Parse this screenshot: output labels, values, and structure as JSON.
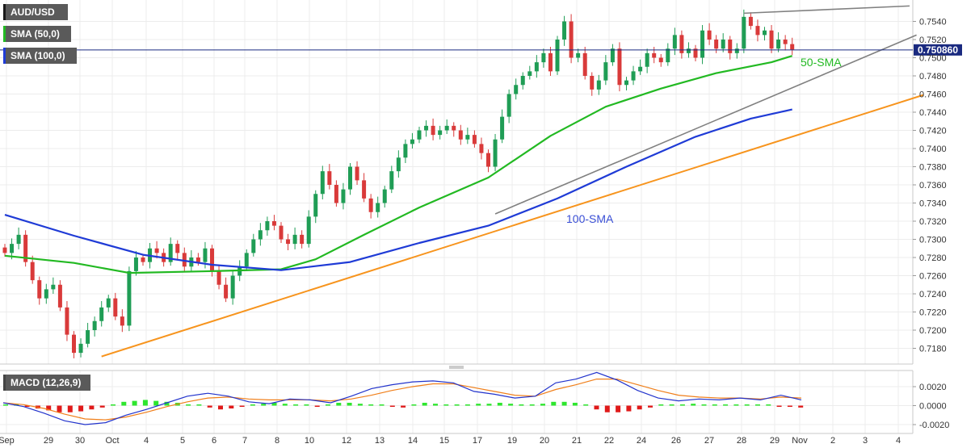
{
  "chart_data": [
    {
      "type": "candlestick",
      "title": "AUD/USD",
      "legend": [
        {
          "label": "AUD/USD",
          "color": "#1a1a1a"
        },
        {
          "label": "SMA (50,0)",
          "color": "#22b922"
        },
        {
          "label": "SMA (100,0)",
          "color": "#1f3bd6"
        }
      ],
      "legend_position": "top-left",
      "grid": true,
      "x_tick_labels": [
        "Sep",
        "29",
        "30",
        "Oct",
        "4",
        "5",
        "6",
        "7",
        "8",
        "10",
        "12",
        "13",
        "14",
        "15",
        "17",
        "19",
        "20",
        "21",
        "22",
        "24",
        "26",
        "27",
        "28",
        "29",
        "Nov",
        "2",
        "3",
        "4"
      ],
      "y_ticks": [
        0.718,
        0.72,
        0.722,
        0.724,
        0.726,
        0.728,
        0.73,
        0.732,
        0.734,
        0.736,
        0.738,
        0.74,
        0.742,
        0.744,
        0.746,
        0.748,
        0.75,
        0.752,
        0.754
      ],
      "y_tick_labels": [
        "0.7180",
        "0.7200",
        "0.7220",
        "0.7240",
        "0.7260",
        "0.7280",
        "0.7300",
        "0.7320",
        "0.7340",
        "0.7360",
        "0.7380",
        "0.7400",
        "0.7420",
        "0.7440",
        "0.7460",
        "0.7480",
        "0.7500",
        "0.7520",
        "0.7540"
      ],
      "ylim": [
        0.7166,
        0.7557
      ],
      "current_price": 0.75086,
      "current_price_label": "0.750860",
      "candle_closes": [
        0.7285,
        0.7295,
        0.7305,
        0.7275,
        0.7255,
        0.7235,
        0.7245,
        0.725,
        0.7225,
        0.7195,
        0.7175,
        0.7185,
        0.72,
        0.721,
        0.7225,
        0.7235,
        0.7215,
        0.7205,
        0.7265,
        0.728,
        0.7275,
        0.729,
        0.7285,
        0.7275,
        0.7295,
        0.7285,
        0.727,
        0.728,
        0.7275,
        0.729,
        0.7265,
        0.725,
        0.7235,
        0.726,
        0.727,
        0.7285,
        0.73,
        0.731,
        0.732,
        0.7315,
        0.73,
        0.7295,
        0.7305,
        0.7295,
        0.7325,
        0.735,
        0.7375,
        0.736,
        0.734,
        0.7355,
        0.738,
        0.7365,
        0.7345,
        0.733,
        0.734,
        0.7355,
        0.7375,
        0.739,
        0.7405,
        0.741,
        0.742,
        0.7425,
        0.7415,
        0.742,
        0.7425,
        0.742,
        0.741,
        0.7415,
        0.7405,
        0.7395,
        0.738,
        0.741,
        0.7435,
        0.746,
        0.747,
        0.748,
        0.7485,
        0.7495,
        0.7505,
        0.7485,
        0.752,
        0.754,
        0.75,
        0.7505,
        0.748,
        0.7465,
        0.7475,
        0.7495,
        0.751,
        0.747,
        0.7475,
        0.7485,
        0.749,
        0.7505,
        0.75,
        0.7495,
        0.751,
        0.7525,
        0.7505,
        0.751,
        0.75,
        0.753,
        0.752,
        0.751,
        0.752,
        0.7505,
        0.751,
        0.7545,
        0.7535,
        0.7525,
        0.753,
        0.751,
        0.752,
        0.7515,
        0.7509
      ],
      "series": [
        {
          "name": "50-SMA",
          "x_index": [
            0,
            10,
            18,
            30,
            40,
            45,
            52,
            60,
            70,
            79,
            87,
            95,
            103,
            111,
            114
          ],
          "values": [
            0.7282,
            0.7274,
            0.7263,
            0.7265,
            0.7267,
            0.7278,
            0.7305,
            0.7335,
            0.7368,
            0.7414,
            0.7446,
            0.7466,
            0.7483,
            0.7495,
            0.7502
          ]
        },
        {
          "name": "100-SMA",
          "x_index": [
            0,
            10,
            20,
            30,
            40,
            50,
            60,
            70,
            80,
            90,
            100,
            108,
            114
          ],
          "values": [
            0.7327,
            0.7304,
            0.7283,
            0.7272,
            0.7266,
            0.7275,
            0.7296,
            0.7315,
            0.7345,
            0.738,
            0.7413,
            0.7433,
            0.7443
          ]
        }
      ],
      "annotations": [
        "50-SMA",
        "100-SMA"
      ],
      "trendlines": [
        {
          "color": "#f7941d",
          "x_index": [
            14,
            133
          ],
          "values": [
            0.7171,
            0.7459
          ]
        },
        {
          "color": "#808080",
          "x_index": [
            71,
            132
          ],
          "values": [
            0.7328,
            0.7525
          ]
        },
        {
          "color": "#808080",
          "x_index": [
            107,
            131
          ],
          "values": [
            0.7549,
            0.7557
          ]
        }
      ]
    },
    {
      "type": "macd",
      "title": "MACD (12,26,9)",
      "y_ticks": [
        -0.002,
        0,
        0.002
      ],
      "y_tick_labels": [
        "-0.0020",
        "0.0000",
        "0.0020"
      ],
      "ylim": [
        -0.0024,
        0.0037
      ],
      "histogram": [
        0.0001,
        0.0,
        -0.0001,
        -0.0003,
        -0.0005,
        -0.0007,
        -0.0007,
        -0.0006,
        -0.0004,
        -0.0002,
        0.0001,
        0.0004,
        0.0005,
        0.0006,
        0.0005,
        0.0004,
        0.0003,
        0.0001,
        0.0,
        -0.0002,
        -0.0004,
        -0.0003,
        -0.0001,
        0.0001,
        0.0002,
        0.0003,
        0.0002,
        0.0001,
        0.0,
        -0.0001,
        0.0001,
        0.0003,
        0.0003,
        0.0002,
        0.0001,
        0.0,
        -0.0001,
        -0.0002,
        0.0001,
        0.0003,
        0.0002,
        0.0001,
        0.0,
        0.0001,
        0.0002,
        0.0002,
        0.0003,
        0.0002,
        0.0001,
        0.0,
        0.0002,
        0.0004,
        0.0004,
        0.0003,
        0.0001,
        -0.0004,
        -0.0007,
        -0.0007,
        -0.0006,
        -0.0004,
        -0.0002,
        0.0,
        0.0001,
        0.0001,
        0.0002,
        0.0001,
        0.0001,
        0.0,
        0.0001,
        0.0001,
        0.0001,
        0.0,
        -0.0001,
        -0.0001,
        -0.0002
      ],
      "macd_line": [
        0.0003,
        -0.0001,
        -0.0008,
        -0.0016,
        -0.002,
        -0.0018,
        -0.001,
        -0.0004,
        0.0003,
        0.001,
        0.0013,
        0.001,
        0.0004,
        0.0002,
        0.0007,
        0.0006,
        0.0003,
        0.001,
        0.0018,
        0.0022,
        0.0025,
        0.0026,
        0.0024,
        0.0015,
        0.0012,
        0.0008,
        0.001,
        0.0024,
        0.0028,
        0.0035,
        0.0027,
        0.0016,
        0.0008,
        0.0005,
        0.0007,
        0.0006,
        0.0008,
        0.0006,
        0.0011,
        0.0006
      ],
      "signal_line": [
        0.0003,
        0.0001,
        -0.0003,
        -0.0009,
        -0.0014,
        -0.0015,
        -0.0012,
        -0.0007,
        -0.0001,
        0.0004,
        0.0008,
        0.0009,
        0.0007,
        0.0006,
        0.0006,
        0.0006,
        0.0005,
        0.0007,
        0.0011,
        0.0016,
        0.002,
        0.0023,
        0.0023,
        0.0019,
        0.0015,
        0.0011,
        0.001,
        0.0017,
        0.0022,
        0.0028,
        0.0028,
        0.0022,
        0.0016,
        0.0011,
        0.0009,
        0.0008,
        0.0008,
        0.0007,
        0.0009,
        0.0008
      ]
    }
  ]
}
